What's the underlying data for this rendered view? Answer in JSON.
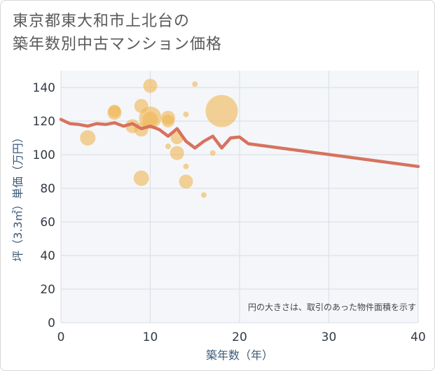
{
  "title": "東京都東大和市上北台の\n築年数別中古マンション価格",
  "chart_data": {
    "type": "scatter",
    "xlabel": "築年数（年）",
    "ylabel": "坪（3.3㎡）単価（万円）",
    "xlim": [
      0,
      40
    ],
    "ylim": [
      0,
      150
    ],
    "xticks": [
      0,
      10,
      20,
      30,
      40
    ],
    "yticks": [
      0,
      20,
      40,
      60,
      80,
      100,
      120,
      140
    ],
    "grid": true,
    "note": "円の大きさは、取引のあった物件面積を示す",
    "colors": {
      "bubble": "#f0b551",
      "line": "#d6735e",
      "grid": "#d9dde3",
      "background": "#f4f6f9"
    },
    "scatter_points": [
      {
        "x": 3,
        "y": 110,
        "size": 11
      },
      {
        "x": 6,
        "y": 125,
        "size": 10
      },
      {
        "x": 6,
        "y": 126,
        "size": 9
      },
      {
        "x": 8,
        "y": 117,
        "size": 10
      },
      {
        "x": 9,
        "y": 115,
        "size": 10
      },
      {
        "x": 9,
        "y": 129,
        "size": 10
      },
      {
        "x": 9,
        "y": 86,
        "size": 11
      },
      {
        "x": 10,
        "y": 141,
        "size": 10
      },
      {
        "x": 10,
        "y": 122,
        "size": 16
      },
      {
        "x": 10,
        "y": 121,
        "size": 11
      },
      {
        "x": 12,
        "y": 122,
        "size": 10
      },
      {
        "x": 12,
        "y": 120,
        "size": 9
      },
      {
        "x": 12,
        "y": 105,
        "size": 4
      },
      {
        "x": 13,
        "y": 110,
        "size": 9
      },
      {
        "x": 13,
        "y": 101,
        "size": 10
      },
      {
        "x": 14,
        "y": 124,
        "size": 4
      },
      {
        "x": 14,
        "y": 93,
        "size": 4
      },
      {
        "x": 14,
        "y": 84,
        "size": 10
      },
      {
        "x": 15,
        "y": 142,
        "size": 4
      },
      {
        "x": 16,
        "y": 76,
        "size": 4
      },
      {
        "x": 17,
        "y": 101,
        "size": 4
      },
      {
        "x": 18,
        "y": 126,
        "size": 23
      }
    ],
    "line_points": [
      {
        "x": 0,
        "y": 121
      },
      {
        "x": 1,
        "y": 118.5
      },
      {
        "x": 2,
        "y": 118
      },
      {
        "x": 3,
        "y": 117
      },
      {
        "x": 4,
        "y": 118.5
      },
      {
        "x": 5,
        "y": 118
      },
      {
        "x": 6,
        "y": 119
      },
      {
        "x": 7,
        "y": 117
      },
      {
        "x": 8,
        "y": 118.5
      },
      {
        "x": 9,
        "y": 115.5
      },
      {
        "x": 10,
        "y": 117
      },
      {
        "x": 11,
        "y": 115
      },
      {
        "x": 12,
        "y": 111
      },
      {
        "x": 13,
        "y": 115.5
      },
      {
        "x": 14,
        "y": 108
      },
      {
        "x": 15,
        "y": 104
      },
      {
        "x": 16,
        "y": 108
      },
      {
        "x": 17,
        "y": 111
      },
      {
        "x": 18,
        "y": 104
      },
      {
        "x": 19,
        "y": 110
      },
      {
        "x": 20,
        "y": 110.5
      },
      {
        "x": 21,
        "y": 106.5
      },
      {
        "x": 40,
        "y": 93
      }
    ]
  }
}
